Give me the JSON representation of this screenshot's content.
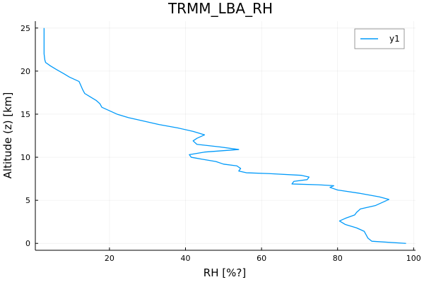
{
  "chart_data": {
    "type": "line",
    "title": "TRMM_LBA_RH",
    "xlabel": "RH [%?]",
    "ylabel": "Altitude (z) [km]",
    "xlim": [
      0.5,
      100.5
    ],
    "ylim": [
      -0.8,
      25.8
    ],
    "xticks": [
      20,
      40,
      60,
      80,
      100
    ],
    "yticks": [
      0,
      5,
      10,
      15,
      20,
      25
    ],
    "grid": true,
    "legend_position": "top-right",
    "colors": {
      "series": "#009AFA"
    },
    "series": [
      {
        "name": "y1",
        "points": [
          [
            98.0,
            0.0
          ],
          [
            89.0,
            0.25
          ],
          [
            88.0,
            0.6
          ],
          [
            87.0,
            1.4
          ],
          [
            85.0,
            1.8
          ],
          [
            82.0,
            2.2
          ],
          [
            80.5,
            2.6
          ],
          [
            82.0,
            2.9
          ],
          [
            84.5,
            3.3
          ],
          [
            85.0,
            3.6
          ],
          [
            86.0,
            4.0
          ],
          [
            90.0,
            4.4
          ],
          [
            92.0,
            4.8
          ],
          [
            93.5,
            5.1
          ],
          [
            91.0,
            5.4
          ],
          [
            86.0,
            5.8
          ],
          [
            80.0,
            6.2
          ],
          [
            78.0,
            6.5
          ],
          [
            79.0,
            6.7
          ],
          [
            75.0,
            6.8
          ],
          [
            68.0,
            6.9
          ],
          [
            68.5,
            7.2
          ],
          [
            72.0,
            7.4
          ],
          [
            72.5,
            7.7
          ],
          [
            70.5,
            7.9
          ],
          [
            62.0,
            8.1
          ],
          [
            56.0,
            8.2
          ],
          [
            54.0,
            8.4
          ],
          [
            54.5,
            8.7
          ],
          [
            53.5,
            9.0
          ],
          [
            50.0,
            9.2
          ],
          [
            48.0,
            9.5
          ],
          [
            44.0,
            9.8
          ],
          [
            41.5,
            10.0
          ],
          [
            41.0,
            10.3
          ],
          [
            45.0,
            10.6
          ],
          [
            54.0,
            10.9
          ],
          [
            49.0,
            11.2
          ],
          [
            43.0,
            11.5
          ],
          [
            42.0,
            11.9
          ],
          [
            43.0,
            12.2
          ],
          [
            45.0,
            12.6
          ],
          [
            42.0,
            13.0
          ],
          [
            38.0,
            13.4
          ],
          [
            33.0,
            13.8
          ],
          [
            28.0,
            14.3
          ],
          [
            25.0,
            14.6
          ],
          [
            22.0,
            15.0
          ],
          [
            20.0,
            15.4
          ],
          [
            18.0,
            15.8
          ],
          [
            17.5,
            16.2
          ],
          [
            16.5,
            16.6
          ],
          [
            15.0,
            17.0
          ],
          [
            13.5,
            17.4
          ],
          [
            13.0,
            17.8
          ],
          [
            12.5,
            18.3
          ],
          [
            12.0,
            18.8
          ],
          [
            9.5,
            19.3
          ],
          [
            8.0,
            19.7
          ],
          [
            6.0,
            20.2
          ],
          [
            4.5,
            20.6
          ],
          [
            3.2,
            21.0
          ],
          [
            3.0,
            21.3
          ],
          [
            2.8,
            22.0
          ],
          [
            2.8,
            23.0
          ],
          [
            2.8,
            24.0
          ],
          [
            2.8,
            25.0
          ]
        ]
      }
    ]
  }
}
